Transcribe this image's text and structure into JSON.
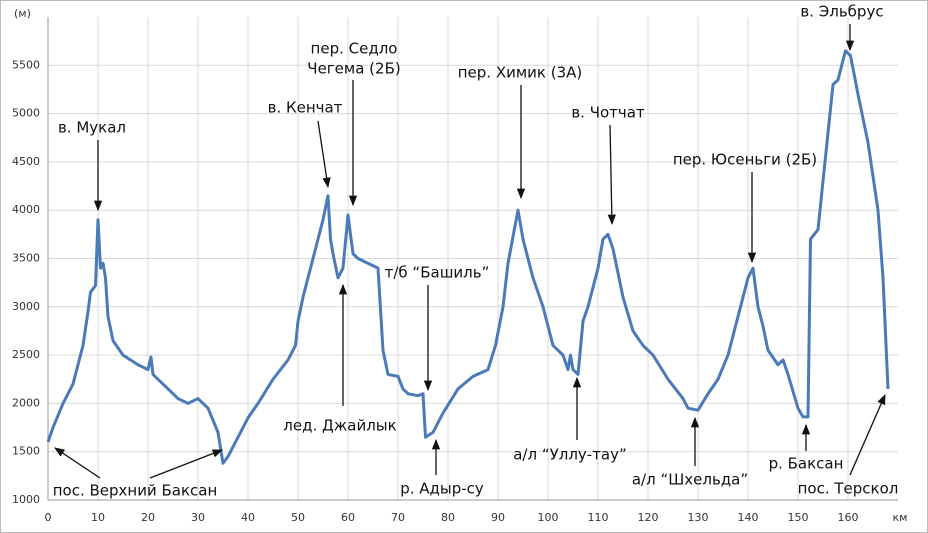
{
  "chart_data": {
    "type": "line",
    "y_label": "(м)",
    "x_label": "км",
    "xlim": [
      0,
      170
    ],
    "ylim": [
      1000,
      6000
    ],
    "xticks": [
      0,
      10,
      20,
      30,
      40,
      50,
      60,
      70,
      80,
      90,
      100,
      110,
      120,
      130,
      140,
      150,
      160
    ],
    "yticks": [
      1000,
      1500,
      2000,
      2500,
      3000,
      3500,
      4000,
      4500,
      5000,
      5500
    ],
    "grid": true,
    "series": [
      {
        "color": "#4a7ab8",
        "x": [
          0,
          1,
          3,
          5,
          7,
          8,
          8.5,
          9.5,
          10,
          10.5,
          11,
          11.5,
          12,
          13,
          15,
          18,
          20,
          20.6,
          21,
          23,
          26,
          28,
          30,
          32,
          34,
          35,
          36,
          38,
          40,
          42,
          45,
          48,
          49.5,
          50,
          51,
          53,
          55,
          56,
          56.5,
          57,
          58,
          59,
          60,
          61,
          62,
          66,
          67,
          68,
          70,
          71,
          72,
          74,
          75,
          75.5,
          77,
          78,
          79,
          82,
          85,
          88,
          89.5,
          91,
          92,
          94,
          95,
          97,
          99,
          101,
          103,
          104,
          104.5,
          105,
          106,
          107,
          108,
          110,
          111,
          112,
          113,
          115,
          117,
          119,
          121,
          124,
          127,
          128,
          130,
          132,
          134,
          136,
          138,
          140,
          141,
          142,
          143,
          144,
          146,
          147,
          148,
          150,
          151,
          152,
          152.5,
          154,
          155,
          156,
          157,
          158,
          159.5,
          160.5,
          162,
          164,
          166,
          167,
          168
        ],
        "values": [
          1600,
          1750,
          2000,
          2200,
          2600,
          2950,
          3150,
          3220,
          3900,
          3400,
          3450,
          3300,
          2900,
          2650,
          2500,
          2400,
          2350,
          2480,
          2300,
          2200,
          2050,
          2000,
          2050,
          1950,
          1700,
          1380,
          1450,
          1650,
          1850,
          2000,
          2250,
          2450,
          2600,
          2850,
          3100,
          3500,
          3900,
          4150,
          3700,
          3550,
          3300,
          3400,
          3950,
          3550,
          3500,
          3400,
          2550,
          2300,
          2280,
          2150,
          2100,
          2080,
          2100,
          1650,
          1700,
          1800,
          1900,
          2150,
          2280,
          2350,
          2600,
          3000,
          3450,
          4000,
          3700,
          3300,
          3000,
          2600,
          2500,
          2350,
          2500,
          2350,
          2300,
          2850,
          3000,
          3400,
          3700,
          3750,
          3600,
          3100,
          2750,
          2600,
          2500,
          2250,
          2050,
          1950,
          1930,
          2100,
          2250,
          2500,
          2900,
          3300,
          3400,
          3000,
          2800,
          2550,
          2400,
          2450,
          2300,
          1950,
          1860,
          1860,
          3700,
          3800,
          4300,
          4800,
          5300,
          5350,
          5650,
          5600,
          5200,
          4700,
          4000,
          3300,
          2150
        ]
      }
    ],
    "annotations": [
      "в. Мукал",
      "в. Кенчат",
      "пер. Седло",
      "Чегема (2Б)",
      "пер. Химик (3А)",
      "в. Чотчат",
      "пер. Юсеньги (2Б)",
      "в. Эльбрус",
      "т/б “Башиль”",
      "лед. Джайлык",
      "р. Адыр-су",
      "а/л “Уллу-тау”",
      "а/л “Шхельда”",
      "р. Баксан",
      "пос. Терскол",
      "пос. Верхний Баксан"
    ]
  }
}
